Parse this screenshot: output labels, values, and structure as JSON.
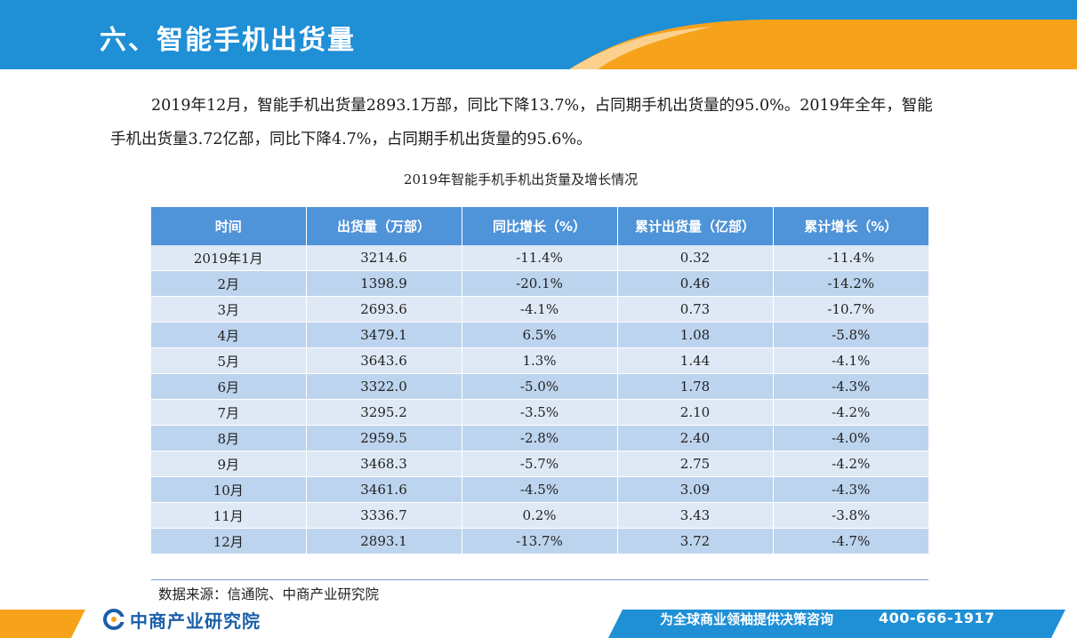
{
  "colors": {
    "header_blue": "#1f8fd6",
    "header_orange": "#f7a21b",
    "table_header": "#4f93d8",
    "row_light": "#dfe9f6",
    "row_dark": "#bdd4ee",
    "footer_blue": "#1f8fd6",
    "brand_blue": "#1a5fa8"
  },
  "header": {
    "title": "六、智能手机出货量"
  },
  "intro": {
    "text": "2019年12月，智能手机出货量2893.1万部，同比下降13.7%，占同期手机出货量的95.0%。2019年全年，智能手机出货量3.72亿部，同比下降4.7%，占同期手机出货量的95.6%。"
  },
  "table": {
    "caption": "2019年智能手机手机出货量及增长情况",
    "headers": [
      "时间",
      "出货量（万部）",
      "同比增长（%）",
      "累计出货量（亿部）",
      "累计增长（%）"
    ],
    "rows": [
      [
        "2019年1月",
        "3214.6",
        "-11.4%",
        "0.32",
        "-11.4%"
      ],
      [
        "2月",
        "1398.9",
        "-20.1%",
        "0.46",
        "-14.2%"
      ],
      [
        "3月",
        "2693.6",
        "-4.1%",
        "0.73",
        "-10.7%"
      ],
      [
        "4月",
        "3479.1",
        "6.5%",
        "1.08",
        "-5.8%"
      ],
      [
        "5月",
        "3643.6",
        "1.3%",
        "1.44",
        "-4.1%"
      ],
      [
        "6月",
        "3322.0",
        "-5.0%",
        "1.78",
        "-4.3%"
      ],
      [
        "7月",
        "3295.2",
        "-3.5%",
        "2.10",
        "-4.2%"
      ],
      [
        "8月",
        "2959.5",
        "-2.8%",
        "2.40",
        "-4.0%"
      ],
      [
        "9月",
        "3468.3",
        "-5.7%",
        "2.75",
        "-4.2%"
      ],
      [
        "10月",
        "3461.6",
        "-4.5%",
        "3.09",
        "-4.3%"
      ],
      [
        "11月",
        "3336.7",
        "0.2%",
        "3.43",
        "-3.8%"
      ],
      [
        "12月",
        "2893.1",
        "-13.7%",
        "3.72",
        "-4.7%"
      ]
    ]
  },
  "source": {
    "text": "数据来源：信通院、中商产业研究院"
  },
  "footer": {
    "logo_icon": "askci-logo-icon",
    "logo_text": "中商产业研究院",
    "slogan": "为全球商业领袖提供决策咨询",
    "phone": "400-666-1917"
  }
}
